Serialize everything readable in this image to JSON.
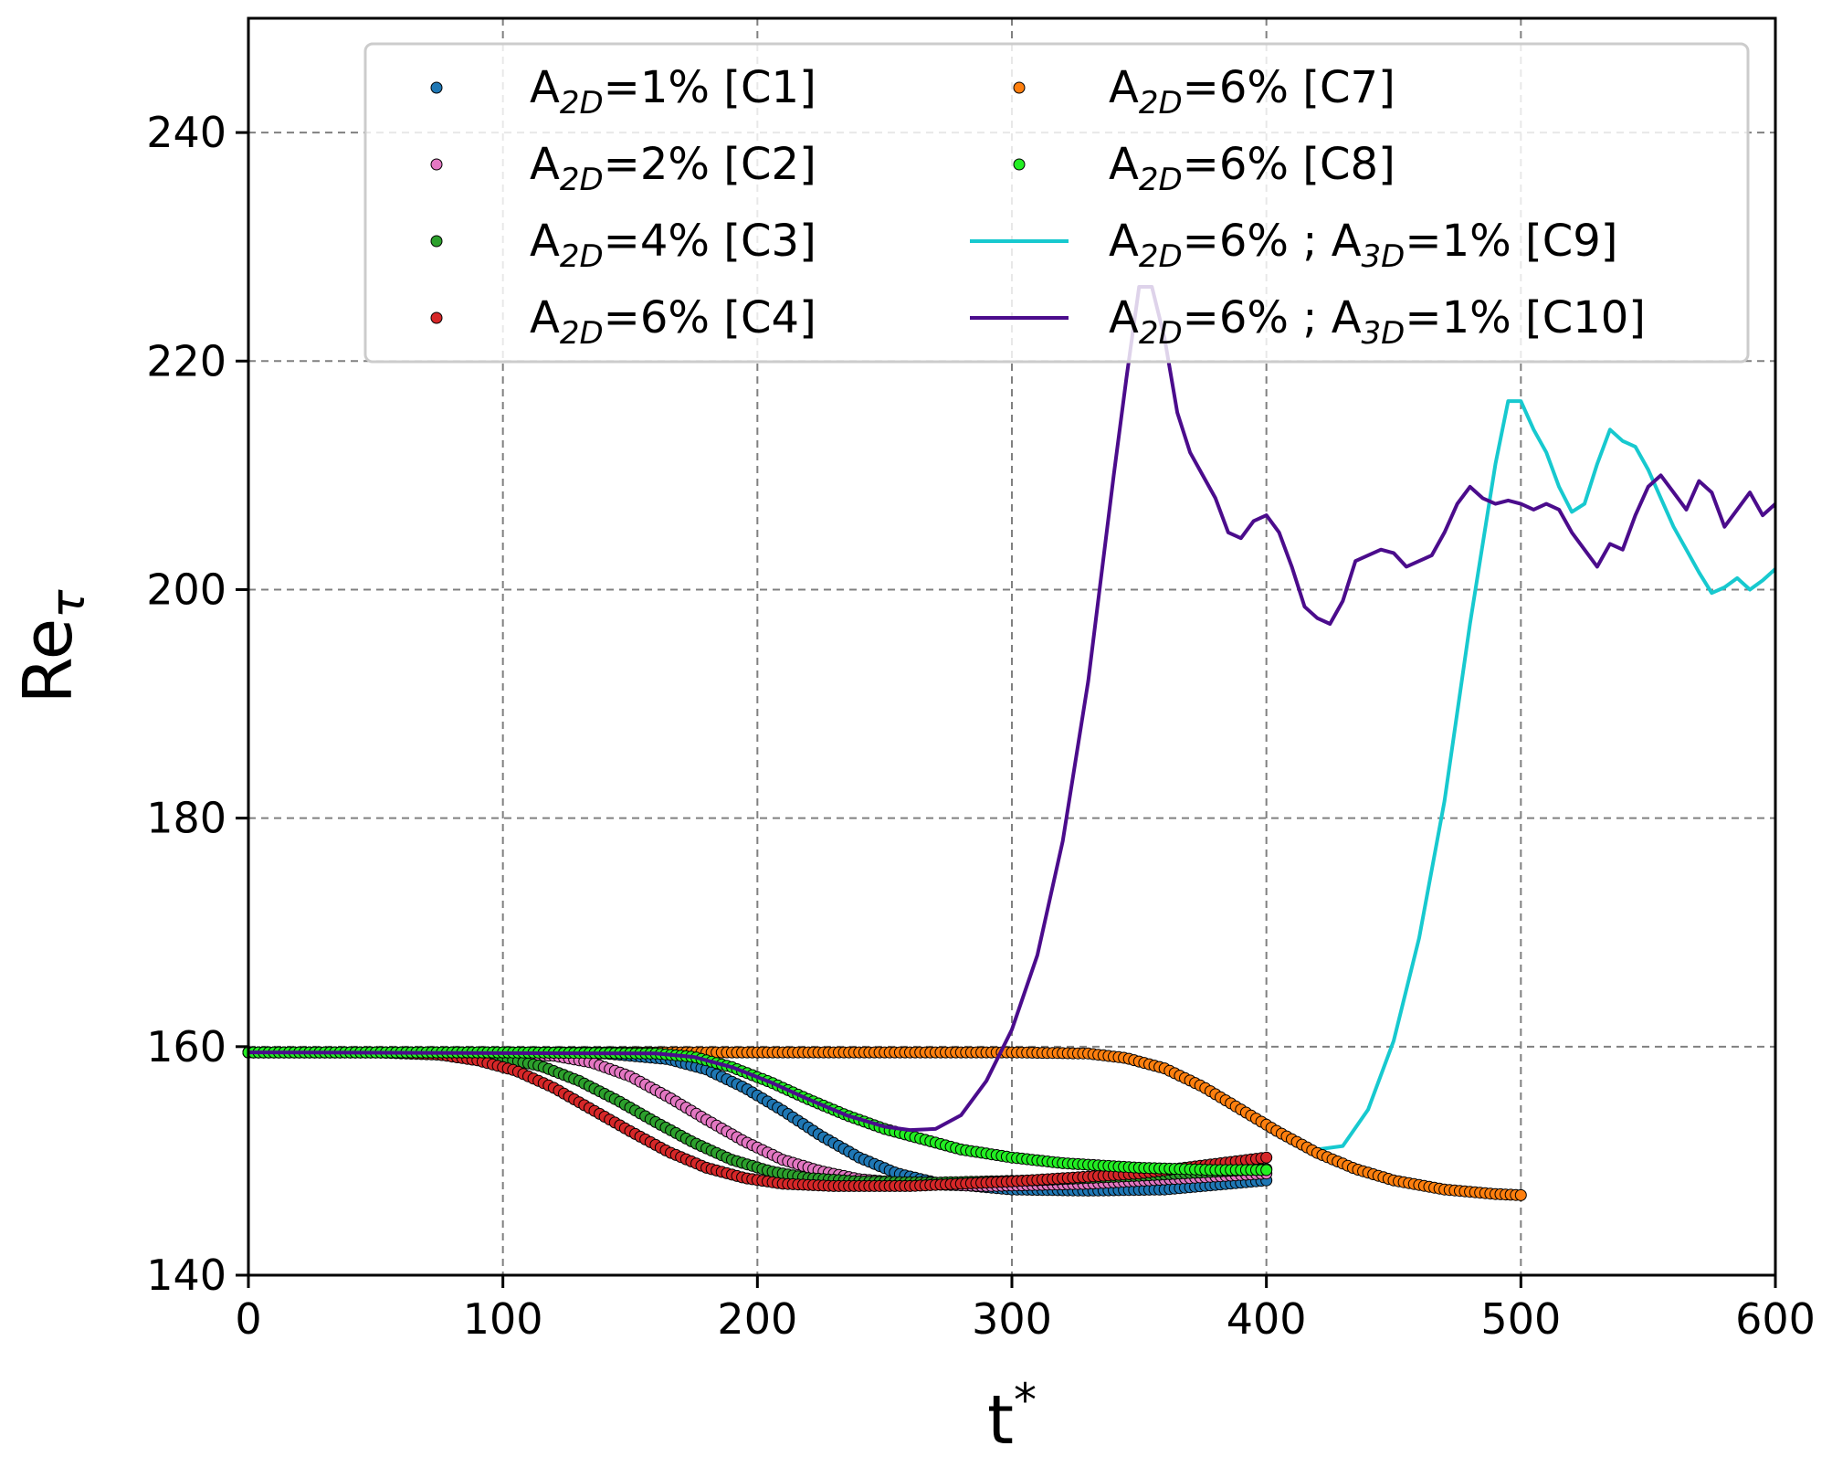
{
  "chart_data": {
    "type": "line",
    "title": "",
    "xlabel": "t",
    "xlabel_sup": "*",
    "ylabel": "Re",
    "ylabel_sub": "τ",
    "xlim": [
      0,
      600
    ],
    "ylim": [
      140,
      250
    ],
    "xticks": [
      0,
      100,
      200,
      300,
      400,
      500,
      600
    ],
    "yticks": [
      140,
      160,
      180,
      200,
      220,
      240
    ],
    "grid": true,
    "legend_position": "top",
    "series": [
      {
        "name": "A2D=1% [C1]",
        "pre": "A",
        "sub": "2D",
        "post": "=1% [C1]",
        "color": "#1f77b4",
        "style": "markers",
        "x": [
          0,
          50,
          100,
          140,
          165,
          180,
          195,
          210,
          225,
          240,
          255,
          270,
          300,
          330,
          360,
          380,
          400
        ],
        "y": [
          159.5,
          159.5,
          159.5,
          159.4,
          158.9,
          158.0,
          156.4,
          154.4,
          152.2,
          150.3,
          148.9,
          148.1,
          147.5,
          147.4,
          147.5,
          147.9,
          148.3
        ]
      },
      {
        "name": "A2D=2% [C2]",
        "pre": "A",
        "sub": "2D",
        "post": "=2% [C2]",
        "color": "#e377c2",
        "style": "markers",
        "x": [
          0,
          50,
          90,
          120,
          135,
          150,
          165,
          180,
          195,
          210,
          225,
          240,
          260,
          290,
          330,
          370,
          400
        ],
        "y": [
          159.5,
          159.5,
          159.5,
          159.2,
          158.6,
          157.4,
          155.6,
          153.6,
          151.7,
          150.1,
          149.1,
          148.4,
          148.0,
          147.8,
          148.0,
          148.5,
          148.9
        ]
      },
      {
        "name": "A2D=4% [C3]",
        "pre": "A",
        "sub": "2D",
        "post": "=4% [C3]",
        "color": "#2ca02c",
        "style": "markers",
        "x": [
          0,
          50,
          80,
          100,
          115,
          130,
          145,
          160,
          175,
          190,
          205,
          220,
          240,
          270,
          310,
          350,
          400
        ],
        "y": [
          159.5,
          159.5,
          159.4,
          159.0,
          158.3,
          157.0,
          155.3,
          153.4,
          151.6,
          150.1,
          149.1,
          148.5,
          148.2,
          148.1,
          148.3,
          148.7,
          149.3
        ]
      },
      {
        "name": "A2D=6% [C4]",
        "pre": "A",
        "sub": "2D",
        "post": "=6% [C4]",
        "color": "#d62728",
        "style": "markers",
        "x": [
          0,
          50,
          75,
          90,
          105,
          120,
          135,
          150,
          165,
          180,
          195,
          210,
          230,
          260,
          300,
          350,
          400
        ],
        "y": [
          159.5,
          159.5,
          159.3,
          158.8,
          157.9,
          156.4,
          154.5,
          152.6,
          150.8,
          149.4,
          148.5,
          148.0,
          147.8,
          147.8,
          148.2,
          148.9,
          150.3
        ]
      },
      {
        "name": "A2D=6% [C7]",
        "pre": "A",
        "sub": "2D",
        "post": "=6% [C7]",
        "color": "#ff7f0e",
        "style": "markers",
        "x": [
          0,
          100,
          200,
          300,
          330,
          345,
          360,
          375,
          390,
          405,
          420,
          435,
          450,
          470,
          490,
          500
        ],
        "y": [
          159.5,
          159.5,
          159.5,
          159.5,
          159.4,
          159.0,
          158.1,
          156.5,
          154.5,
          152.5,
          150.7,
          149.3,
          148.3,
          147.5,
          147.1,
          147.0
        ]
      },
      {
        "name": "A2D=6% [C8]",
        "pre": "A",
        "sub": "2D",
        "post": "=6% [C8]",
        "color": "#22ee22",
        "style": "markers",
        "x": [
          0,
          100,
          160,
          175,
          190,
          205,
          220,
          235,
          250,
          265,
          280,
          300,
          320,
          350,
          380,
          400
        ],
        "y": [
          159.5,
          159.5,
          159.4,
          159.1,
          158.2,
          156.9,
          155.4,
          154.0,
          152.8,
          151.9,
          151.0,
          150.3,
          149.8,
          149.4,
          149.2,
          149.2
        ]
      },
      {
        "name": "A2D=6% ; A3D=1% [C9]",
        "pre": "A",
        "sub": "2D",
        "post": "=6% ; A",
        "sub2": "3D",
        "post2": "=1% [C9]",
        "color": "#17c9cf",
        "style": "line",
        "x": [
          0,
          300,
          330,
          345,
          360,
          375,
          390,
          405,
          420,
          430,
          440,
          450,
          460,
          470,
          480,
          490,
          495,
          500,
          505,
          510,
          515,
          520,
          525,
          530,
          535,
          540,
          545,
          550,
          555,
          560,
          565,
          570,
          575,
          580,
          585,
          590,
          595,
          600
        ],
        "y": [
          159.5,
          159.5,
          159.4,
          159.0,
          158.1,
          156.5,
          154.5,
          152.5,
          151.0,
          151.3,
          154.5,
          160.5,
          169.5,
          181.5,
          197.0,
          211.0,
          216.5,
          216.5,
          214.0,
          212.0,
          209.0,
          206.8,
          207.5,
          211.0,
          214.0,
          213.0,
          212.5,
          210.5,
          208.0,
          205.5,
          203.5,
          201.5,
          199.7,
          200.2,
          201.0,
          200.0,
          200.8,
          201.8
        ]
      },
      {
        "name": "A2D=6% ; A3D=1% [C10]",
        "pre": "A",
        "sub": "2D",
        "post": "=6% ; A",
        "sub2": "3D",
        "post2": "=1% [C10]",
        "color": "#4b0c8c",
        "style": "line",
        "x": [
          0,
          160,
          175,
          190,
          205,
          220,
          235,
          250,
          260,
          270,
          280,
          290,
          300,
          310,
          320,
          330,
          340,
          345,
          350,
          355,
          360,
          365,
          370,
          375,
          380,
          385,
          390,
          395,
          400,
          405,
          410,
          415,
          420,
          425,
          430,
          435,
          440,
          445,
          450,
          455,
          460,
          465,
          470,
          475,
          480,
          485,
          490,
          495,
          500,
          505,
          510,
          515,
          520,
          525,
          530,
          535,
          540,
          545,
          550,
          555,
          560,
          565,
          570,
          575,
          580,
          585,
          590,
          595,
          600
        ],
        "y": [
          159.5,
          159.4,
          159.1,
          158.2,
          156.9,
          155.4,
          154.0,
          153.0,
          152.7,
          152.8,
          154.0,
          157.0,
          161.5,
          168.0,
          178.0,
          192.0,
          210.0,
          218.5,
          226.5,
          226.5,
          222.0,
          215.5,
          212.0,
          210.0,
          208.0,
          205.0,
          204.5,
          206.0,
          206.5,
          205.0,
          202.0,
          198.5,
          197.5,
          197.0,
          199.0,
          202.5,
          203.0,
          203.5,
          203.2,
          202.0,
          202.5,
          203.0,
          205.0,
          207.5,
          209.0,
          208.0,
          207.5,
          207.8,
          207.5,
          207.0,
          207.5,
          207.0,
          205.0,
          203.5,
          202.0,
          204.0,
          203.5,
          206.5,
          209.0,
          210.0,
          208.5,
          207.0,
          209.5,
          208.5,
          205.5,
          207.0,
          208.5,
          206.5,
          207.5
        ]
      }
    ]
  }
}
